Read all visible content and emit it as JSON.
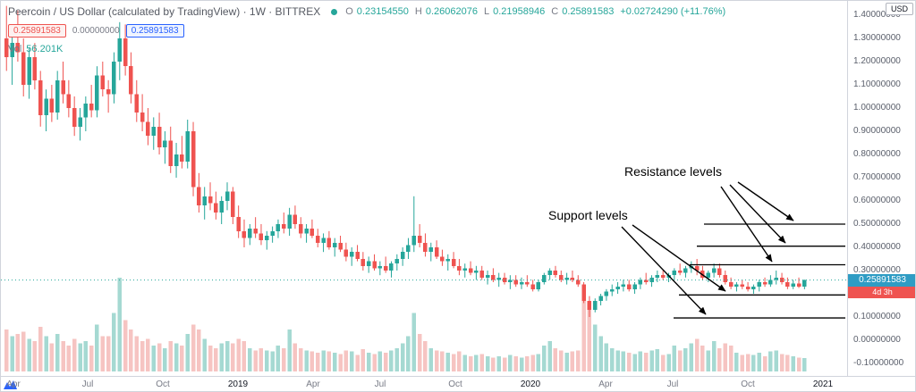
{
  "header": {
    "title": "Peercoin / US Dollar (calculated by TradingView) · 1W · BITTREX",
    "ohlc": {
      "o": "O",
      "open": "0.23154550",
      "h": "H",
      "high": "0.26062076",
      "l": "L",
      "low": "0.21958946",
      "c": "C",
      "close": "0.25891583",
      "change": "+0.02724290 (+11.76%)"
    },
    "chips": {
      "red": "0.25891583",
      "neutral": "0.00000000",
      "blue": "0.25891583"
    },
    "vol_label": "Vol",
    "vol_value": "56.201K"
  },
  "annotations": {
    "resistance": "Resistance levels",
    "support": "Support levels"
  },
  "price_axis": {
    "currency": "USD",
    "labels": [
      "1.40000000",
      "1.30000000",
      "1.20000000",
      "1.10000000",
      "1.00000000",
      "0.90000000",
      "0.80000000",
      "0.70000000",
      "0.60000000",
      "0.50000000",
      "0.40000000",
      "0.30000000",
      "0.20000000",
      "0.10000000",
      "0.00000000",
      "-0.10000000"
    ],
    "last_price": "0.25891583",
    "countdown": "4d 3h"
  },
  "time_axis": {
    "labels": [
      "Apr",
      "Jul",
      "Oct",
      "2019",
      "Apr",
      "Jul",
      "Oct",
      "2020",
      "Apr",
      "Jul",
      "Oct",
      "2021"
    ]
  },
  "colors": {
    "up": "#26a69a",
    "down": "#ef5350",
    "vol_up": "#a5d9d2",
    "vol_down": "#f6c4c2",
    "accent_blue": "#2962ff",
    "badge_price": "#2f9cc4",
    "badge_countdown": "#ef5350",
    "trendline": "#000000"
  },
  "chart_data": {
    "type": "candlestick",
    "title": "Peercoin / US Dollar (calculated by TradingView) · 1W · BITTREX",
    "interval": "1W",
    "ylim": [
      -0.1,
      1.4
    ],
    "y_tick_step": 0.1,
    "x_tick_labels": [
      "Apr",
      "Jul",
      "Oct",
      "2019",
      "Apr",
      "Jul",
      "Oct",
      "2020",
      "Apr",
      "Jul",
      "Oct",
      "2021"
    ],
    "last_close": 0.25891583,
    "countdown": "4d 3h",
    "volume_unit": "K",
    "last_volume_k": 56.201,
    "trendlines": [
      {
        "role": "resistance",
        "price": 0.5
      },
      {
        "role": "resistance",
        "price": 0.405
      },
      {
        "role": "resistance",
        "price": 0.325
      },
      {
        "role": "support",
        "price": 0.195
      },
      {
        "role": "support",
        "price": 0.096
      }
    ],
    "candles": [
      [
        1.3,
        1.44,
        1.16,
        1.22,
        180
      ],
      [
        1.22,
        1.34,
        1.1,
        1.28,
        150
      ],
      [
        1.28,
        1.42,
        1.2,
        1.24,
        160
      ],
      [
        1.24,
        1.3,
        1.05,
        1.1,
        170
      ],
      [
        1.1,
        1.26,
        1.04,
        1.22,
        140
      ],
      [
        1.22,
        1.28,
        1.08,
        1.12,
        130
      ],
      [
        1.12,
        1.16,
        0.92,
        0.97,
        190
      ],
      [
        0.97,
        1.08,
        0.9,
        1.04,
        150
      ],
      [
        1.04,
        1.1,
        0.94,
        0.98,
        120
      ],
      [
        0.98,
        1.16,
        0.95,
        1.12,
        160
      ],
      [
        1.12,
        1.2,
        1.02,
        1.06,
        130
      ],
      [
        1.06,
        1.12,
        0.96,
        1.0,
        110
      ],
      [
        1.0,
        1.05,
        0.88,
        0.92,
        140
      ],
      [
        0.92,
        1.0,
        0.86,
        0.96,
        120
      ],
      [
        0.96,
        1.05,
        0.9,
        1.02,
        130
      ],
      [
        1.02,
        1.1,
        0.96,
        0.99,
        110
      ],
      [
        0.99,
        1.18,
        0.96,
        1.14,
        200
      ],
      [
        1.14,
        1.2,
        1.05,
        1.08,
        150
      ],
      [
        1.08,
        1.12,
        0.98,
        1.06,
        150
      ],
      [
        1.06,
        1.24,
        1.02,
        1.2,
        250
      ],
      [
        1.2,
        1.37,
        1.12,
        1.3,
        400
      ],
      [
        1.3,
        1.36,
        1.14,
        1.18,
        220
      ],
      [
        1.18,
        1.24,
        1.02,
        1.06,
        180
      ],
      [
        1.06,
        1.12,
        0.94,
        0.98,
        150
      ],
      [
        0.98,
        1.06,
        0.9,
        0.94,
        130
      ],
      [
        0.94,
        1.0,
        0.84,
        0.88,
        140
      ],
      [
        0.88,
        0.96,
        0.82,
        0.92,
        110
      ],
      [
        0.92,
        0.98,
        0.8,
        0.83,
        120
      ],
      [
        0.83,
        0.9,
        0.76,
        0.86,
        100
      ],
      [
        0.86,
        0.92,
        0.72,
        0.75,
        130
      ],
      [
        0.75,
        0.85,
        0.7,
        0.8,
        120
      ],
      [
        0.8,
        0.88,
        0.74,
        0.77,
        110
      ],
      [
        0.77,
        0.95,
        0.74,
        0.9,
        160
      ],
      [
        0.9,
        0.94,
        0.62,
        0.66,
        200
      ],
      [
        0.66,
        0.72,
        0.55,
        0.58,
        180
      ],
      [
        0.58,
        0.66,
        0.52,
        0.62,
        140
      ],
      [
        0.62,
        0.68,
        0.56,
        0.59,
        110
      ],
      [
        0.59,
        0.64,
        0.52,
        0.55,
        100
      ],
      [
        0.55,
        0.62,
        0.5,
        0.6,
        120
      ],
      [
        0.6,
        0.68,
        0.56,
        0.64,
        130
      ],
      [
        0.64,
        0.66,
        0.5,
        0.53,
        120
      ],
      [
        0.53,
        0.58,
        0.44,
        0.47,
        140
      ],
      [
        0.47,
        0.52,
        0.4,
        0.44,
        130
      ],
      [
        0.44,
        0.5,
        0.41,
        0.48,
        100
      ],
      [
        0.48,
        0.53,
        0.44,
        0.46,
        90
      ],
      [
        0.46,
        0.5,
        0.41,
        0.43,
        100
      ],
      [
        0.43,
        0.47,
        0.39,
        0.45,
        90
      ],
      [
        0.45,
        0.49,
        0.42,
        0.47,
        85
      ],
      [
        0.47,
        0.52,
        0.44,
        0.5,
        110
      ],
      [
        0.5,
        0.55,
        0.46,
        0.48,
        100
      ],
      [
        0.48,
        0.57,
        0.45,
        0.54,
        180
      ],
      [
        0.54,
        0.58,
        0.48,
        0.5,
        120
      ],
      [
        0.5,
        0.53,
        0.44,
        0.46,
        100
      ],
      [
        0.46,
        0.5,
        0.42,
        0.48,
        90
      ],
      [
        0.48,
        0.52,
        0.44,
        0.45,
        85
      ],
      [
        0.45,
        0.48,
        0.4,
        0.42,
        80
      ],
      [
        0.42,
        0.46,
        0.38,
        0.44,
        90
      ],
      [
        0.44,
        0.47,
        0.39,
        0.4,
        85
      ],
      [
        0.4,
        0.44,
        0.36,
        0.42,
        80
      ],
      [
        0.42,
        0.45,
        0.38,
        0.39,
        75
      ],
      [
        0.39,
        0.42,
        0.34,
        0.36,
        90
      ],
      [
        0.36,
        0.4,
        0.32,
        0.38,
        85
      ],
      [
        0.38,
        0.41,
        0.34,
        0.35,
        70
      ],
      [
        0.35,
        0.38,
        0.3,
        0.32,
        95
      ],
      [
        0.32,
        0.36,
        0.29,
        0.34,
        80
      ],
      [
        0.34,
        0.37,
        0.3,
        0.31,
        75
      ],
      [
        0.31,
        0.34,
        0.28,
        0.32,
        85
      ],
      [
        0.32,
        0.36,
        0.29,
        0.3,
        80
      ],
      [
        0.3,
        0.34,
        0.27,
        0.33,
        90
      ],
      [
        0.33,
        0.37,
        0.3,
        0.35,
        100
      ],
      [
        0.35,
        0.4,
        0.32,
        0.38,
        120
      ],
      [
        0.38,
        0.44,
        0.35,
        0.41,
        150
      ],
      [
        0.41,
        0.62,
        0.38,
        0.45,
        250
      ],
      [
        0.45,
        0.5,
        0.4,
        0.42,
        160
      ],
      [
        0.42,
        0.46,
        0.36,
        0.38,
        130
      ],
      [
        0.38,
        0.42,
        0.34,
        0.4,
        100
      ],
      [
        0.4,
        0.43,
        0.35,
        0.36,
        90
      ],
      [
        0.36,
        0.39,
        0.32,
        0.34,
        85
      ],
      [
        0.34,
        0.37,
        0.3,
        0.35,
        80
      ],
      [
        0.35,
        0.38,
        0.31,
        0.32,
        75
      ],
      [
        0.32,
        0.35,
        0.28,
        0.3,
        85
      ],
      [
        0.3,
        0.33,
        0.27,
        0.31,
        70
      ],
      [
        0.31,
        0.34,
        0.28,
        0.29,
        65
      ],
      [
        0.29,
        0.32,
        0.26,
        0.3,
        70
      ],
      [
        0.3,
        0.32,
        0.26,
        0.27,
        75
      ],
      [
        0.27,
        0.3,
        0.24,
        0.28,
        65
      ],
      [
        0.28,
        0.31,
        0.25,
        0.26,
        60
      ],
      [
        0.26,
        0.29,
        0.23,
        0.27,
        65
      ],
      [
        0.27,
        0.29,
        0.24,
        0.25,
        60
      ],
      [
        0.25,
        0.28,
        0.22,
        0.26,
        70
      ],
      [
        0.26,
        0.28,
        0.23,
        0.24,
        65
      ],
      [
        0.24,
        0.27,
        0.22,
        0.25,
        60
      ],
      [
        0.25,
        0.28,
        0.23,
        0.24,
        65
      ],
      [
        0.24,
        0.26,
        0.21,
        0.22,
        70
      ],
      [
        0.22,
        0.26,
        0.21,
        0.25,
        75
      ],
      [
        0.25,
        0.29,
        0.24,
        0.28,
        110
      ],
      [
        0.28,
        0.31,
        0.26,
        0.3,
        130
      ],
      [
        0.3,
        0.32,
        0.27,
        0.28,
        100
      ],
      [
        0.28,
        0.3,
        0.25,
        0.26,
        90
      ],
      [
        0.26,
        0.29,
        0.24,
        0.27,
        80
      ],
      [
        0.27,
        0.3,
        0.25,
        0.26,
        85
      ],
      [
        0.26,
        0.28,
        0.23,
        0.24,
        90
      ],
      [
        0.24,
        0.25,
        0.16,
        0.17,
        340
      ],
      [
        0.17,
        0.19,
        0.1,
        0.13,
        300
      ],
      [
        0.13,
        0.18,
        0.12,
        0.17,
        200
      ],
      [
        0.17,
        0.2,
        0.15,
        0.19,
        150
      ],
      [
        0.19,
        0.22,
        0.17,
        0.21,
        120
      ],
      [
        0.21,
        0.24,
        0.19,
        0.22,
        100
      ],
      [
        0.22,
        0.25,
        0.2,
        0.23,
        90
      ],
      [
        0.23,
        0.26,
        0.21,
        0.24,
        85
      ],
      [
        0.24,
        0.26,
        0.21,
        0.22,
        80
      ],
      [
        0.22,
        0.25,
        0.2,
        0.24,
        75
      ],
      [
        0.24,
        0.27,
        0.22,
        0.26,
        85
      ],
      [
        0.26,
        0.29,
        0.24,
        0.25,
        80
      ],
      [
        0.25,
        0.28,
        0.23,
        0.27,
        90
      ],
      [
        0.27,
        0.3,
        0.25,
        0.28,
        95
      ],
      [
        0.28,
        0.3,
        0.26,
        0.27,
        70
      ],
      [
        0.27,
        0.29,
        0.25,
        0.28,
        75
      ],
      [
        0.28,
        0.31,
        0.26,
        0.3,
        110
      ],
      [
        0.3,
        0.33,
        0.28,
        0.29,
        90
      ],
      [
        0.29,
        0.32,
        0.27,
        0.31,
        100
      ],
      [
        0.31,
        0.34,
        0.29,
        0.32,
        120
      ],
      [
        0.32,
        0.35,
        0.28,
        0.3,
        140
      ],
      [
        0.3,
        0.32,
        0.26,
        0.27,
        110
      ],
      [
        0.27,
        0.3,
        0.25,
        0.29,
        90
      ],
      [
        0.29,
        0.33,
        0.27,
        0.31,
        130
      ],
      [
        0.31,
        0.33,
        0.27,
        0.28,
        100
      ],
      [
        0.28,
        0.3,
        0.24,
        0.25,
        120
      ],
      [
        0.25,
        0.27,
        0.22,
        0.23,
        110
      ],
      [
        0.23,
        0.25,
        0.21,
        0.24,
        80
      ],
      [
        0.24,
        0.26,
        0.22,
        0.23,
        70
      ],
      [
        0.23,
        0.25,
        0.21,
        0.22,
        75
      ],
      [
        0.22,
        0.24,
        0.2,
        0.23,
        70
      ],
      [
        0.23,
        0.26,
        0.21,
        0.25,
        80
      ],
      [
        0.25,
        0.27,
        0.23,
        0.24,
        65
      ],
      [
        0.24,
        0.28,
        0.23,
        0.26,
        85
      ],
      [
        0.26,
        0.3,
        0.24,
        0.27,
        90
      ],
      [
        0.27,
        0.29,
        0.24,
        0.25,
        75
      ],
      [
        0.25,
        0.27,
        0.22,
        0.23,
        70
      ],
      [
        0.23,
        0.26,
        0.22,
        0.245,
        65
      ],
      [
        0.245,
        0.27,
        0.225,
        0.2315,
        60
      ],
      [
        0.2315,
        0.26062076,
        0.21958946,
        0.25891583,
        56.201
      ]
    ]
  }
}
